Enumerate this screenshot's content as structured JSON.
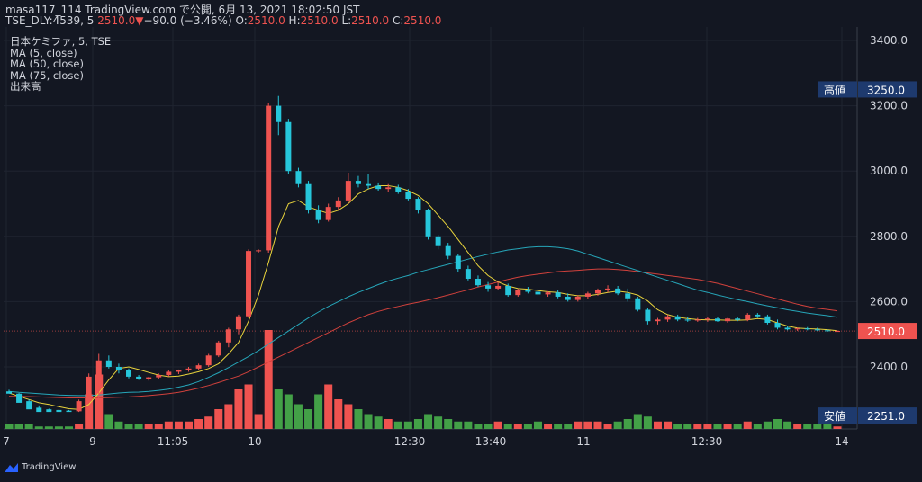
{
  "header": {
    "line1": "masa117_114 TradingView.com で公開, 6月 13, 2021 18:02:50 JST",
    "symbol": "TSE_DLY:4539, 5 ",
    "last": "2510.0",
    "change": "−90.0 (−3.46%)",
    "o_label": " O:",
    "o": "2510.0",
    "h_label": " H:",
    "h": "2510.0",
    "l_label": " L:",
    "l": "2510.0",
    "c_label": " C:",
    "c": "2510.0"
  },
  "legend": {
    "title": "日本ケミファ, 5, TSE",
    "ma5": "MA (5, close)",
    "ma50": "MA (50, close)",
    "ma75": "MA (75, close)",
    "volume": "出来高"
  },
  "brand": "TradingView",
  "colors": {
    "up": "#ef5350",
    "down": "#26c6da",
    "vol_up": "#ef5350",
    "vol_down": "#43a047",
    "ma5": "#e8d33c",
    "ma50": "#26a5b8",
    "ma75": "#d0413c",
    "badge": "#1e3a6e"
  },
  "chart_data": {
    "type": "candlestick",
    "price_axis": {
      "min": 2251,
      "max": 3450,
      "ticks": [
        "3400.0",
        "3200.0",
        "3000.0",
        "2800.0",
        "2600.0",
        "2400.0"
      ]
    },
    "time_axis": [
      "7",
      "9",
      "11:05",
      "10",
      "12:30",
      "13:40",
      "11",
      "12:30",
      "14"
    ],
    "high_badge": {
      "label": "高値",
      "value": "3250.0"
    },
    "low_badge": {
      "label": "安値",
      "value": "2251.0"
    },
    "last_badge": {
      "value": "2510.0"
    },
    "candles": [
      [
        2325,
        2330,
        2320,
        2318
      ],
      [
        2318,
        2320,
        2295,
        2290
      ],
      [
        2295,
        2300,
        2275,
        2270
      ],
      [
        2275,
        2282,
        2270,
        2262
      ],
      [
        2270,
        2272,
        2268,
        2262
      ],
      [
        2268,
        2270,
        2266,
        2262
      ],
      [
        2266,
        2268,
        2264,
        2262
      ],
      [
        2264,
        2300,
        2262,
        2295
      ],
      [
        2295,
        2380,
        2290,
        2370
      ],
      [
        2370,
        2440,
        2300,
        2420
      ],
      [
        2420,
        2435,
        2395,
        2400
      ],
      [
        2400,
        2410,
        2380,
        2390
      ],
      [
        2390,
        2395,
        2365,
        2370
      ],
      [
        2370,
        2375,
        2360,
        2362
      ],
      [
        2362,
        2370,
        2358,
        2368
      ],
      [
        2368,
        2380,
        2362,
        2375
      ],
      [
        2375,
        2390,
        2370,
        2385
      ],
      [
        2385,
        2392,
        2378,
        2390
      ],
      [
        2390,
        2400,
        2385,
        2395
      ],
      [
        2395,
        2410,
        2390,
        2405
      ],
      [
        2405,
        2440,
        2400,
        2435
      ],
      [
        2435,
        2480,
        2430,
        2475
      ],
      [
        2475,
        2520,
        2460,
        2515
      ],
      [
        2515,
        2560,
        2500,
        2555
      ],
      [
        2555,
        2760,
        2550,
        2755
      ],
      [
        2755,
        2760,
        2750,
        2757
      ],
      [
        2757,
        3210,
        2750,
        3200
      ],
      [
        3200,
        3230,
        3110,
        3150
      ],
      [
        3150,
        3160,
        2990,
        3000
      ],
      [
        3000,
        3010,
        2950,
        2960
      ],
      [
        2960,
        2970,
        2870,
        2880
      ],
      [
        2880,
        2895,
        2840,
        2850
      ],
      [
        2850,
        2900,
        2845,
        2890
      ],
      [
        2890,
        2920,
        2880,
        2910
      ],
      [
        2910,
        2995,
        2900,
        2970
      ],
      [
        2970,
        2985,
        2950,
        2960
      ],
      [
        2960,
        2990,
        2945,
        2955
      ],
      [
        2955,
        2965,
        2940,
        2945
      ],
      [
        2945,
        2960,
        2935,
        2950
      ],
      [
        2950,
        2958,
        2930,
        2935
      ],
      [
        2935,
        2945,
        2910,
        2915
      ],
      [
        2915,
        2920,
        2870,
        2880
      ],
      [
        2880,
        2885,
        2790,
        2800
      ],
      [
        2800,
        2805,
        2760,
        2770
      ],
      [
        2770,
        2780,
        2730,
        2740
      ],
      [
        2740,
        2745,
        2690,
        2700
      ],
      [
        2700,
        2710,
        2665,
        2670
      ],
      [
        2670,
        2680,
        2645,
        2650
      ],
      [
        2650,
        2660,
        2630,
        2640
      ],
      [
        2640,
        2660,
        2635,
        2648
      ],
      [
        2648,
        2655,
        2615,
        2620
      ],
      [
        2620,
        2640,
        2615,
        2635
      ],
      [
        2635,
        2645,
        2625,
        2630
      ],
      [
        2630,
        2640,
        2618,
        2622
      ],
      [
        2622,
        2632,
        2615,
        2628
      ],
      [
        2628,
        2635,
        2610,
        2615
      ],
      [
        2615,
        2625,
        2600,
        2605
      ],
      [
        2605,
        2620,
        2600,
        2615
      ],
      [
        2615,
        2630,
        2608,
        2625
      ],
      [
        2625,
        2640,
        2618,
        2635
      ],
      [
        2635,
        2650,
        2628,
        2640
      ],
      [
        2640,
        2648,
        2620,
        2625
      ],
      [
        2625,
        2640,
        2600,
        2610
      ],
      [
        2610,
        2615,
        2570,
        2575
      ],
      [
        2575,
        2580,
        2530,
        2540
      ],
      [
        2540,
        2550,
        2530,
        2545
      ],
      [
        2545,
        2560,
        2538,
        2555
      ],
      [
        2555,
        2560,
        2540,
        2545
      ],
      [
        2545,
        2552,
        2538,
        2542
      ],
      [
        2542,
        2550,
        2538,
        2545
      ],
      [
        2545,
        2552,
        2538,
        2548
      ],
      [
        2548,
        2552,
        2538,
        2540
      ],
      [
        2540,
        2550,
        2535,
        2548
      ],
      [
        2548,
        2552,
        2540,
        2544
      ],
      [
        2544,
        2565,
        2540,
        2560
      ],
      [
        2560,
        2565,
        2550,
        2555
      ],
      [
        2555,
        2560,
        2530,
        2535
      ],
      [
        2535,
        2545,
        2515,
        2520
      ],
      [
        2520,
        2525,
        2512,
        2515
      ],
      [
        2515,
        2520,
        2510,
        2518
      ],
      [
        2518,
        2522,
        2512,
        2515
      ],
      [
        2515,
        2520,
        2510,
        2512
      ],
      [
        2512,
        2515,
        2508,
        2510
      ],
      [
        2510,
        2512,
        2508,
        2510
      ]
    ],
    "volume": [
      2,
      2,
      2,
      1,
      1,
      1,
      1,
      2,
      14,
      22,
      6,
      3,
      2,
      2,
      2,
      2,
      3,
      3,
      3,
      4,
      5,
      8,
      10,
      16,
      18,
      6,
      40,
      16,
      14,
      10,
      8,
      14,
      18,
      12,
      10,
      8,
      6,
      5,
      4,
      3,
      3,
      4,
      6,
      5,
      4,
      3,
      3,
      2,
      2,
      3,
      2,
      2,
      2,
      3,
      2,
      2,
      2,
      3,
      3,
      3,
      2,
      3,
      4,
      6,
      5,
      3,
      3,
      2,
      2,
      2,
      2,
      2,
      2,
      2,
      3,
      2,
      3,
      4,
      3,
      2,
      2,
      2,
      2,
      1
    ],
    "ma5": [
      2320,
      2310,
      2300,
      2290,
      2285,
      2278,
      2272,
      2270,
      2285,
      2320,
      2360,
      2395,
      2400,
      2392,
      2383,
      2375,
      2370,
      2372,
      2378,
      2385,
      2395,
      2410,
      2440,
      2475,
      2540,
      2620,
      2720,
      2830,
      2900,
      2910,
      2890,
      2880,
      2870,
      2880,
      2900,
      2930,
      2945,
      2955,
      2955,
      2950,
      2940,
      2925,
      2900,
      2865,
      2830,
      2790,
      2750,
      2710,
      2680,
      2660,
      2648,
      2640,
      2638,
      2634,
      2630,
      2628,
      2622,
      2618,
      2618,
      2622,
      2628,
      2632,
      2628,
      2620,
      2602,
      2575,
      2560,
      2552,
      2548,
      2545,
      2544,
      2544,
      2543,
      2543,
      2544,
      2548,
      2545,
      2535,
      2525,
      2519,
      2517,
      2516,
      2514,
      2511
    ],
    "ma50": [
      2325,
      2322,
      2320,
      2318,
      2316,
      2314,
      2313,
      2312,
      2312,
      2314,
      2317,
      2320,
      2322,
      2323,
      2325,
      2328,
      2332,
      2338,
      2345,
      2355,
      2368,
      2382,
      2398,
      2415,
      2432,
      2450,
      2470,
      2490,
      2510,
      2530,
      2550,
      2568,
      2585,
      2600,
      2615,
      2628,
      2640,
      2652,
      2663,
      2672,
      2680,
      2690,
      2698,
      2706,
      2714,
      2722,
      2730,
      2738,
      2745,
      2752,
      2758,
      2762,
      2766,
      2768,
      2768,
      2766,
      2762,
      2755,
      2745,
      2735,
      2725,
      2715,
      2705,
      2695,
      2685,
      2675,
      2665,
      2655,
      2645,
      2635,
      2628,
      2620,
      2613,
      2606,
      2600,
      2593,
      2587,
      2581,
      2575,
      2570,
      2565,
      2561,
      2557,
      2552
    ],
    "ma75": [
      2310,
      2310,
      2309,
      2308,
      2307,
      2306,
      2305,
      2305,
      2305,
      2305,
      2306,
      2307,
      2308,
      2310,
      2312,
      2315,
      2318,
      2322,
      2328,
      2335,
      2343,
      2352,
      2362,
      2372,
      2385,
      2400,
      2415,
      2430,
      2445,
      2460,
      2475,
      2490,
      2505,
      2520,
      2535,
      2548,
      2560,
      2570,
      2578,
      2585,
      2592,
      2598,
      2605,
      2612,
      2620,
      2628,
      2636,
      2645,
      2652,
      2660,
      2668,
      2675,
      2680,
      2684,
      2688,
      2692,
      2694,
      2696,
      2698,
      2700,
      2700,
      2698,
      2696,
      2692,
      2688,
      2684,
      2680,
      2676,
      2672,
      2668,
      2662,
      2656,
      2648,
      2640,
      2632,
      2624,
      2616,
      2608,
      2600,
      2592,
      2585,
      2580,
      2576,
      2572
    ]
  }
}
